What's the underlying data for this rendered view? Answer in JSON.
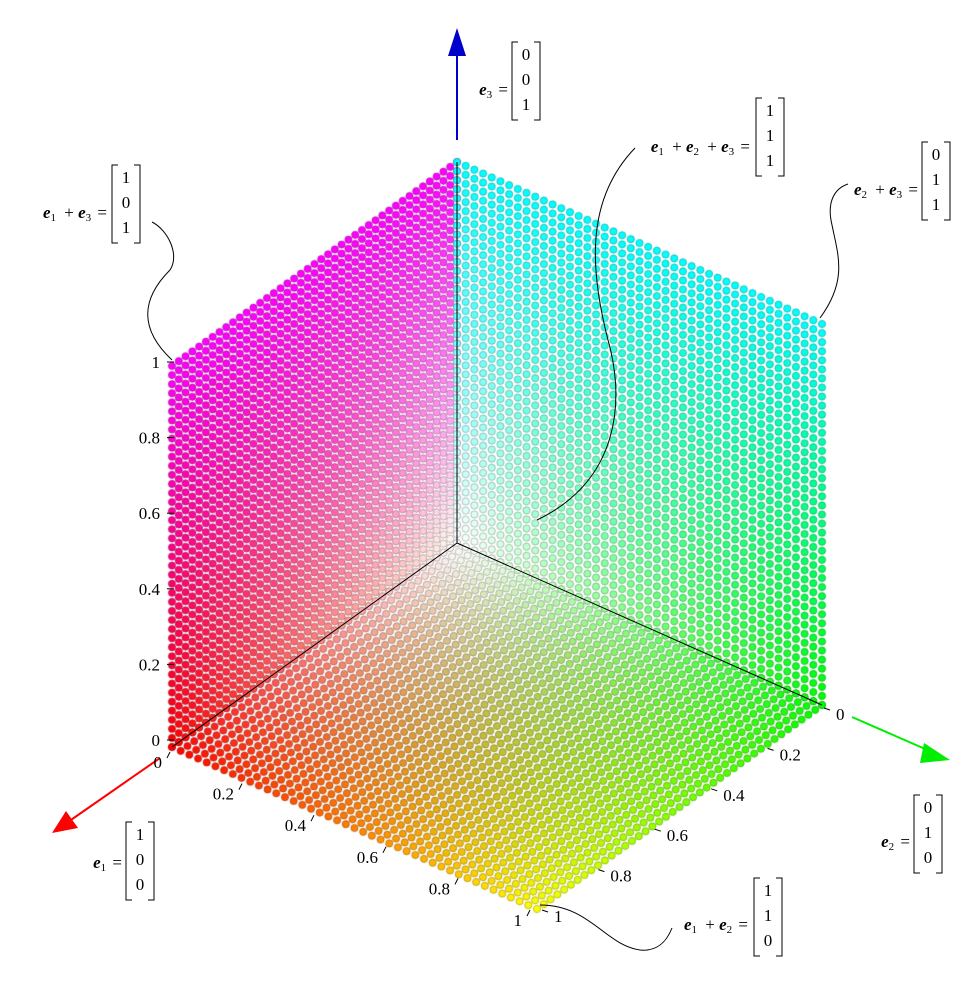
{
  "colors": {
    "e1_axis": "#ff0000",
    "e2_axis": "#00ee00",
    "e3_axis": "#0000cc",
    "edge": "#000000"
  },
  "axis_ticks": {
    "vertical": [
      "0",
      "0.2",
      "0.4",
      "0.6",
      "0.8",
      "1"
    ],
    "e1": [
      "0",
      "0.2",
      "0.4",
      "0.6",
      "0.8",
      "1"
    ],
    "e2": [
      "0",
      "0.2",
      "0.4",
      "0.6",
      "0.8",
      "1"
    ]
  },
  "labels": {
    "e1": {
      "name": "e",
      "sub": "1",
      "vector": [
        "1",
        "0",
        "0"
      ]
    },
    "e2": {
      "name": "e",
      "sub": "2",
      "vector": [
        "0",
        "1",
        "0"
      ]
    },
    "e3": {
      "name": "e",
      "sub": "3",
      "vector": [
        "0",
        "0",
        "1"
      ]
    },
    "e1_e2": {
      "terms": [
        "1",
        "2"
      ],
      "vector": [
        "1",
        "1",
        "0"
      ]
    },
    "e1_e3": {
      "terms": [
        "1",
        "3"
      ],
      "vector": [
        "1",
        "0",
        "1"
      ]
    },
    "e2_e3": {
      "terms": [
        "2",
        "3"
      ],
      "vector": [
        "0",
        "1",
        "1"
      ]
    },
    "e1_e2_e3": {
      "terms": [
        "1",
        "2",
        "3"
      ],
      "vector": [
        "1",
        "1",
        "1"
      ]
    }
  },
  "symbols": {
    "plus": "+",
    "equals": "="
  }
}
